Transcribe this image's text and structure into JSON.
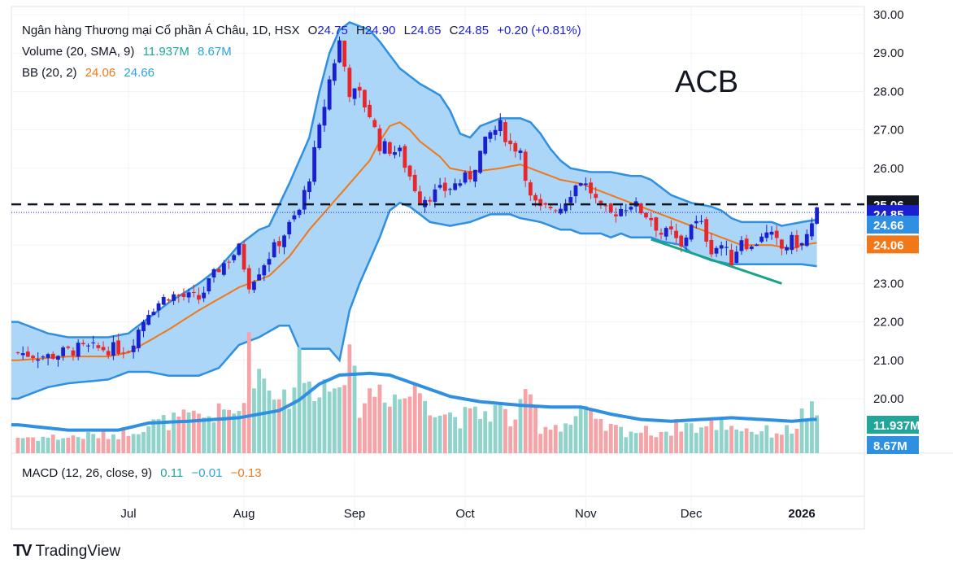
{
  "legend": {
    "main": {
      "name": "Ngân hàng Thương mại Cổ phần Á Châu, 1D, HSX",
      "o_label": "O",
      "o": "24.75",
      "h_label": "H",
      "h": "24.90",
      "l_label": "L",
      "l": "24.65",
      "c_label": "C",
      "c": "24.85",
      "change": "+0.20 (+0.81%)"
    },
    "volume": {
      "label": "Volume (20, SMA, 9)",
      "v1": "11.937M",
      "v2": "8.67M"
    },
    "bb": {
      "label": "BB (20, 2)",
      "v1": "24.06",
      "v2": "24.66"
    },
    "macd": {
      "label": "MACD (12, 26, close, 9)",
      "v1": "0.11",
      "v2": "−0.01",
      "v3": "−0.13"
    }
  },
  "watermark": "ACB",
  "logo": {
    "text": "TradingView",
    "mark": "TV"
  },
  "colors": {
    "up": "#1a1fd0",
    "down": "#e8272d",
    "vol_up": "#8fd3cb",
    "vol_down": "#f5a3a6",
    "bb_fill": "#a8d4f7",
    "bb_line": "#2f8fe0",
    "mid": "#f07818",
    "trend": "#1aa38a",
    "vol_sma": "#2f8fe0"
  },
  "price_axis": [
    "30.00",
    "29.00",
    "28.00",
    "27.00",
    "26.00",
    "25.00",
    "24.00",
    "23.00",
    "22.00",
    "21.00",
    "20.00"
  ],
  "price_labels": [
    {
      "value": "25.06",
      "price": 25.06,
      "bg": "#131722"
    },
    {
      "value": "24.85",
      "price": 24.85,
      "bg": "#1a1fd0"
    },
    {
      "value": "24.66",
      "price": 24.66,
      "bg": "#2f8fe0"
    },
    {
      "value": "24.06",
      "price": 24.06,
      "bg": "#f07818"
    }
  ],
  "volume_labels": [
    {
      "value": "11.937M",
      "bg": "#22a699"
    },
    {
      "value": "8.67M",
      "bg": "#2f8fe0"
    }
  ],
  "time_axis": [
    {
      "label": "Jul",
      "bar": 22,
      "bold": false
    },
    {
      "label": "Aug",
      "bar": 45,
      "bold": false
    },
    {
      "label": "Sep",
      "bar": 67,
      "bold": false
    },
    {
      "label": "Oct",
      "bar": 89,
      "bold": false
    },
    {
      "label": "Nov",
      "bar": 113,
      "bold": false
    },
    {
      "label": "Dec",
      "bar": 134,
      "bold": false
    },
    {
      "label": "2026",
      "bar": 156,
      "bold": true
    }
  ],
  "chart_data": {
    "type": "candlestick",
    "title": "Ngân hàng Thương mại Cổ phần Á Châu, 1D, HSX",
    "ylim": [
      20.0,
      30.0
    ],
    "reference_line": 25.06,
    "anchors": {
      "close": [
        [
          0,
          21.2
        ],
        [
          6,
          21.1
        ],
        [
          12,
          21.3
        ],
        [
          18,
          21.3
        ],
        [
          22,
          21.3
        ],
        [
          26,
          22.3
        ],
        [
          30,
          22.7
        ],
        [
          36,
          22.6
        ],
        [
          40,
          23.4
        ],
        [
          44,
          23.9
        ],
        [
          46,
          23.0
        ],
        [
          52,
          24.1
        ],
        [
          56,
          24.9
        ],
        [
          58,
          25.8
        ],
        [
          60,
          27.0
        ],
        [
          62,
          28.3
        ],
        [
          64,
          29.3
        ],
        [
          66,
          28.0
        ],
        [
          68,
          27.9
        ],
        [
          70,
          27.4
        ],
        [
          72,
          26.6
        ],
        [
          74,
          26.5
        ],
        [
          76,
          26.4
        ],
        [
          80,
          25.2
        ],
        [
          82,
          25.3
        ],
        [
          86,
          25.5
        ],
        [
          90,
          25.8
        ],
        [
          92,
          26.4
        ],
        [
          94,
          26.9
        ],
        [
          96,
          27.1
        ],
        [
          98,
          26.6
        ],
        [
          100,
          26.5
        ],
        [
          102,
          25.2
        ],
        [
          104,
          24.9
        ],
        [
          106,
          25.0
        ],
        [
          108,
          25.0
        ],
        [
          110,
          25.4
        ],
        [
          112,
          25.7
        ],
        [
          114,
          25.4
        ],
        [
          116,
          24.9
        ],
        [
          118,
          24.8
        ],
        [
          122,
          25.1
        ],
        [
          124,
          24.9
        ],
        [
          126,
          24.7
        ],
        [
          128,
          24.3
        ],
        [
          130,
          24.3
        ],
        [
          132,
          23.9
        ],
        [
          134,
          24.6
        ],
        [
          136,
          24.5
        ],
        [
          138,
          23.9
        ],
        [
          140,
          24.0
        ],
        [
          142,
          23.6
        ],
        [
          144,
          24.2
        ],
        [
          146,
          23.9
        ],
        [
          148,
          24.3
        ],
        [
          150,
          24.2
        ],
        [
          152,
          23.9
        ],
        [
          154,
          24.1
        ],
        [
          156,
          24.0
        ],
        [
          158,
          24.5
        ],
        [
          159,
          24.85
        ]
      ],
      "volume": [
        [
          0,
          0.9
        ],
        [
          10,
          0.9
        ],
        [
          20,
          1.1
        ],
        [
          22,
          1.3
        ],
        [
          26,
          1.6
        ],
        [
          30,
          1.8
        ],
        [
          40,
          2.2
        ],
        [
          44,
          2.4
        ],
        [
          46,
          5.5
        ],
        [
          50,
          3.8
        ],
        [
          54,
          3.2
        ],
        [
          56,
          5.0
        ],
        [
          58,
          3.5
        ],
        [
          60,
          4.3
        ],
        [
          62,
          3.5
        ],
        [
          64,
          5.3
        ],
        [
          66,
          4.8
        ],
        [
          68,
          2.8
        ],
        [
          72,
          3.8
        ],
        [
          76,
          3.1
        ],
        [
          80,
          3.6
        ],
        [
          84,
          2.4
        ],
        [
          88,
          2.0
        ],
        [
          92,
          2.2
        ],
        [
          96,
          2.5
        ],
        [
          98,
          1.8
        ],
        [
          100,
          2.4
        ],
        [
          102,
          3.2
        ],
        [
          104,
          1.5
        ],
        [
          110,
          1.7
        ],
        [
          112,
          2.4
        ],
        [
          116,
          1.5
        ],
        [
          120,
          1.3
        ],
        [
          126,
          1.2
        ],
        [
          130,
          1.3
        ],
        [
          132,
          1.7
        ],
        [
          136,
          1.4
        ],
        [
          140,
          1.7
        ],
        [
          146,
          1.3
        ],
        [
          150,
          1.2
        ],
        [
          154,
          1.3
        ],
        [
          156,
          2.1
        ],
        [
          158,
          2.3
        ],
        [
          159,
          1.7
        ]
      ],
      "vol_ma": [
        [
          0,
          1.6
        ],
        [
          10,
          1.3
        ],
        [
          20,
          1.3
        ],
        [
          26,
          1.7
        ],
        [
          34,
          1.8
        ],
        [
          44,
          2.0
        ],
        [
          52,
          2.4
        ],
        [
          56,
          3.0
        ],
        [
          60,
          3.9
        ],
        [
          64,
          4.4
        ],
        [
          70,
          4.5
        ],
        [
          74,
          4.4
        ],
        [
          80,
          3.8
        ],
        [
          86,
          3.2
        ],
        [
          92,
          2.9
        ],
        [
          100,
          2.7
        ],
        [
          106,
          2.6
        ],
        [
          112,
          2.6
        ],
        [
          118,
          2.2
        ],
        [
          124,
          1.9
        ],
        [
          130,
          1.8
        ],
        [
          136,
          1.9
        ],
        [
          142,
          2.0
        ],
        [
          148,
          1.9
        ],
        [
          154,
          1.8
        ],
        [
          158,
          1.9
        ],
        [
          159,
          1.9
        ]
      ],
      "bb_upper": [
        [
          0,
          22.0
        ],
        [
          6,
          21.7
        ],
        [
          10,
          21.6
        ],
        [
          18,
          21.6
        ],
        [
          22,
          21.7
        ],
        [
          26,
          22.1
        ],
        [
          30,
          22.5
        ],
        [
          36,
          23.0
        ],
        [
          40,
          23.4
        ],
        [
          44,
          24.0
        ],
        [
          48,
          24.4
        ],
        [
          50,
          24.5
        ],
        [
          54,
          25.6
        ],
        [
          56,
          26.2
        ],
        [
          58,
          26.8
        ],
        [
          60,
          28.0
        ],
        [
          62,
          29.0
        ],
        [
          64,
          29.6
        ],
        [
          66,
          29.8
        ],
        [
          70,
          29.6
        ],
        [
          72,
          29.3
        ],
        [
          76,
          28.6
        ],
        [
          80,
          28.2
        ],
        [
          84,
          27.9
        ],
        [
          86,
          27.5
        ],
        [
          88,
          26.9
        ],
        [
          90,
          26.8
        ],
        [
          92,
          27.1
        ],
        [
          96,
          27.3
        ],
        [
          100,
          27.3
        ],
        [
          102,
          27.2
        ],
        [
          104,
          26.9
        ],
        [
          106,
          26.5
        ],
        [
          108,
          26.2
        ],
        [
          110,
          26.0
        ],
        [
          114,
          25.9
        ],
        [
          118,
          25.9
        ],
        [
          122,
          25.8
        ],
        [
          124,
          25.8
        ],
        [
          126,
          25.7
        ],
        [
          128,
          25.5
        ],
        [
          130,
          25.3
        ],
        [
          132,
          25.2
        ],
        [
          134,
          25.1
        ],
        [
          138,
          25.0
        ],
        [
          140,
          24.9
        ],
        [
          142,
          24.7
        ],
        [
          144,
          24.6
        ],
        [
          146,
          24.6
        ],
        [
          150,
          24.6
        ],
        [
          152,
          24.5
        ],
        [
          156,
          24.6
        ],
        [
          159,
          24.66
        ]
      ],
      "bb_lower": [
        [
          0,
          20.0
        ],
        [
          6,
          20.3
        ],
        [
          10,
          20.4
        ],
        [
          18,
          20.5
        ],
        [
          22,
          20.7
        ],
        [
          24,
          20.7
        ],
        [
          26,
          20.7
        ],
        [
          30,
          20.6
        ],
        [
          36,
          20.6
        ],
        [
          40,
          20.8
        ],
        [
          44,
          21.4
        ],
        [
          48,
          21.6
        ],
        [
          52,
          21.9
        ],
        [
          54,
          21.9
        ],
        [
          56,
          21.3
        ],
        [
          58,
          21.3
        ],
        [
          62,
          21.3
        ],
        [
          64,
          21.0
        ],
        [
          66,
          22.3
        ],
        [
          68,
          23.0
        ],
        [
          70,
          23.6
        ],
        [
          72,
          24.2
        ],
        [
          74,
          24.9
        ],
        [
          76,
          25.1
        ],
        [
          78,
          25.0
        ],
        [
          80,
          24.8
        ],
        [
          82,
          24.6
        ],
        [
          86,
          24.5
        ],
        [
          90,
          24.6
        ],
        [
          94,
          24.8
        ],
        [
          98,
          24.8
        ],
        [
          100,
          24.7
        ],
        [
          104,
          24.6
        ],
        [
          106,
          24.5
        ],
        [
          108,
          24.4
        ],
        [
          110,
          24.4
        ],
        [
          112,
          24.3
        ],
        [
          116,
          24.3
        ],
        [
          118,
          24.2
        ],
        [
          120,
          24.3
        ],
        [
          122,
          24.2
        ],
        [
          126,
          24.2
        ],
        [
          128,
          24.1
        ],
        [
          132,
          24.0
        ],
        [
          134,
          23.8
        ],
        [
          136,
          23.7
        ],
        [
          138,
          23.6
        ],
        [
          142,
          23.5
        ],
        [
          146,
          23.5
        ],
        [
          150,
          23.5
        ],
        [
          152,
          23.5
        ],
        [
          156,
          23.5
        ],
        [
          159,
          23.45
        ]
      ],
      "bb_mid": [
        [
          0,
          21.0
        ],
        [
          10,
          21.1
        ],
        [
          18,
          21.1
        ],
        [
          22,
          21.2
        ],
        [
          26,
          21.5
        ],
        [
          30,
          21.8
        ],
        [
          36,
          22.3
        ],
        [
          40,
          22.6
        ],
        [
          44,
          22.9
        ],
        [
          50,
          23.2
        ],
        [
          54,
          23.7
        ],
        [
          58,
          24.4
        ],
        [
          62,
          25.0
        ],
        [
          66,
          25.6
        ],
        [
          70,
          26.2
        ],
        [
          72,
          26.7
        ],
        [
          74,
          27.1
        ],
        [
          76,
          27.2
        ],
        [
          78,
          27.0
        ],
        [
          80,
          26.7
        ],
        [
          84,
          26.3
        ],
        [
          86,
          26.0
        ],
        [
          90,
          25.9
        ],
        [
          96,
          26.0
        ],
        [
          100,
          26.1
        ],
        [
          104,
          25.9
        ],
        [
          108,
          25.7
        ],
        [
          112,
          25.6
        ],
        [
          116,
          25.4
        ],
        [
          120,
          25.2
        ],
        [
          124,
          25.0
        ],
        [
          128,
          24.8
        ],
        [
          132,
          24.6
        ],
        [
          136,
          24.4
        ],
        [
          140,
          24.2
        ],
        [
          144,
          24.0
        ],
        [
          150,
          24.0
        ],
        [
          154,
          23.9
        ],
        [
          156,
          24.0
        ],
        [
          159,
          24.06
        ]
      ]
    },
    "trendline": [
      [
        126,
        24.15
      ],
      [
        152,
        23.0
      ]
    ],
    "x_ticks": [
      "Jul",
      "Aug",
      "Sep",
      "Oct",
      "Nov",
      "Dec",
      "2026"
    ],
    "volume_last": "11.937M",
    "volume_sma_last": "8.67M"
  }
}
